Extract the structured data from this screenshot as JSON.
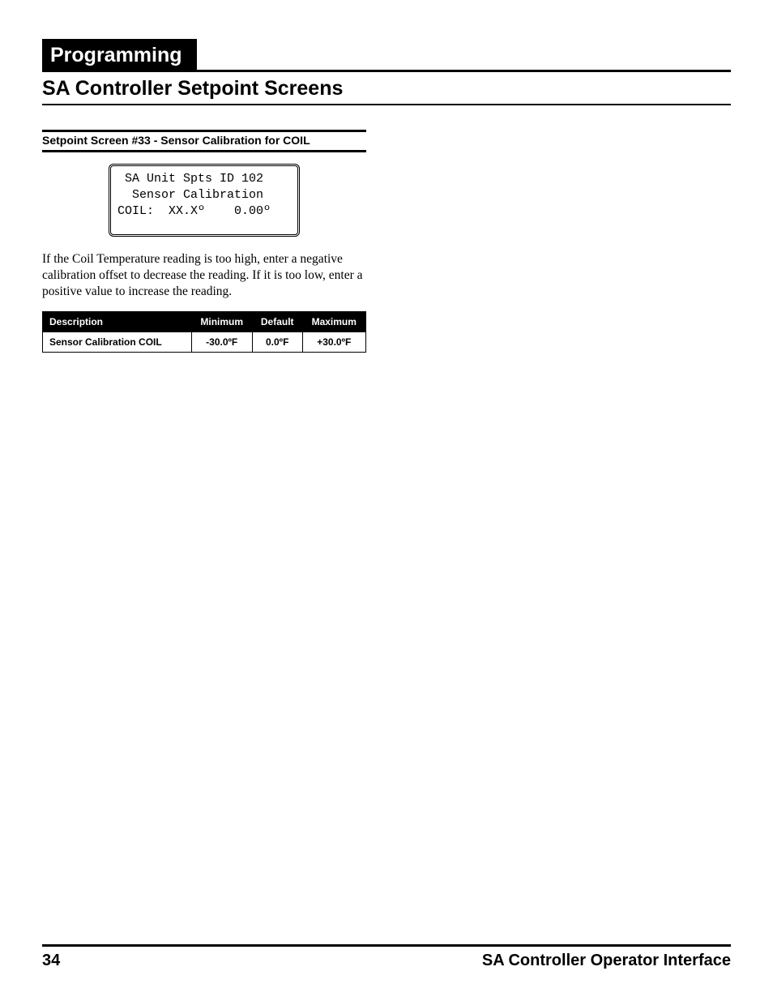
{
  "header": {
    "tab_label": "Programming",
    "section_title": "SA Controller Setpoint Screens"
  },
  "section": {
    "sub_heading": "Setpoint Screen #33 - Sensor Calibration for COIL",
    "lcd_lines": {
      "l1": " SA Unit Spts ID 102",
      "l2": "  Sensor Calibration",
      "l3": "COIL:  XX.Xº    0.00º"
    },
    "body_text": "If the Coil Temperature reading is too high, enter a negative calibration offset to decrease the reading. If it is too low, enter a positive value to increase the reading."
  },
  "table": {
    "columns": [
      "Description",
      "Minimum",
      "Default",
      "Maximum"
    ],
    "rows": [
      [
        "Sensor Calibration COIL",
        "-30.0ºF",
        "0.0ºF",
        "+30.0ºF"
      ]
    ],
    "header_bg": "#000000",
    "header_fg": "#ffffff",
    "cell_font_size": 12,
    "border_color": "#000000"
  },
  "footer": {
    "page_number": "34",
    "doc_title": "SA Controller Operator Interface"
  },
  "colors": {
    "background": "#ffffff",
    "text": "#000000",
    "tab_bg": "#000000",
    "tab_fg": "#ffffff"
  },
  "typography": {
    "tab_font": "Arial",
    "tab_weight": 900,
    "tab_size_pt": 19,
    "section_title_size_pt": 19,
    "sub_heading_size_pt": 10.5,
    "body_font": "Times New Roman",
    "body_size_pt": 11.5,
    "lcd_font": "Courier New",
    "lcd_size_pt": 11,
    "footer_size_pt": 15
  }
}
